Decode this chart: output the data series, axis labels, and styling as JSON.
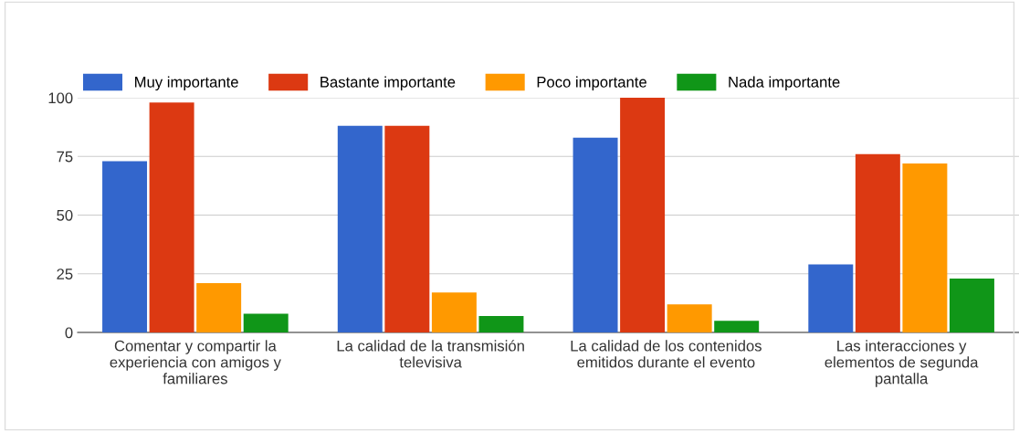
{
  "chart_data": {
    "type": "bar",
    "categories": [
      "Comentar y compartir la\nexperiencia con amigos y\nfamiliares",
      "La calidad de la transmisión\ntelevisiva",
      "La calidad de los contenidos\nemitidos durante el evento",
      "Las interacciones y\nelementos de segunda\npantalla"
    ],
    "series": [
      {
        "name": "Muy importante",
        "color": "#3366cc",
        "values": [
          73,
          88,
          83,
          29
        ]
      },
      {
        "name": "Bastante importante",
        "color": "#dc3912",
        "values": [
          98,
          88,
          100,
          76
        ]
      },
      {
        "name": "Poco importante",
        "color": "#ff9900",
        "values": [
          21,
          17,
          12,
          72
        ]
      },
      {
        "name": "Nada importante",
        "color": "#109618",
        "values": [
          8,
          7,
          5,
          23
        ]
      }
    ],
    "ylim": [
      0,
      100
    ],
    "yticks": [
      0,
      25,
      50,
      75,
      100
    ],
    "grid": "y",
    "legend": "top left"
  }
}
